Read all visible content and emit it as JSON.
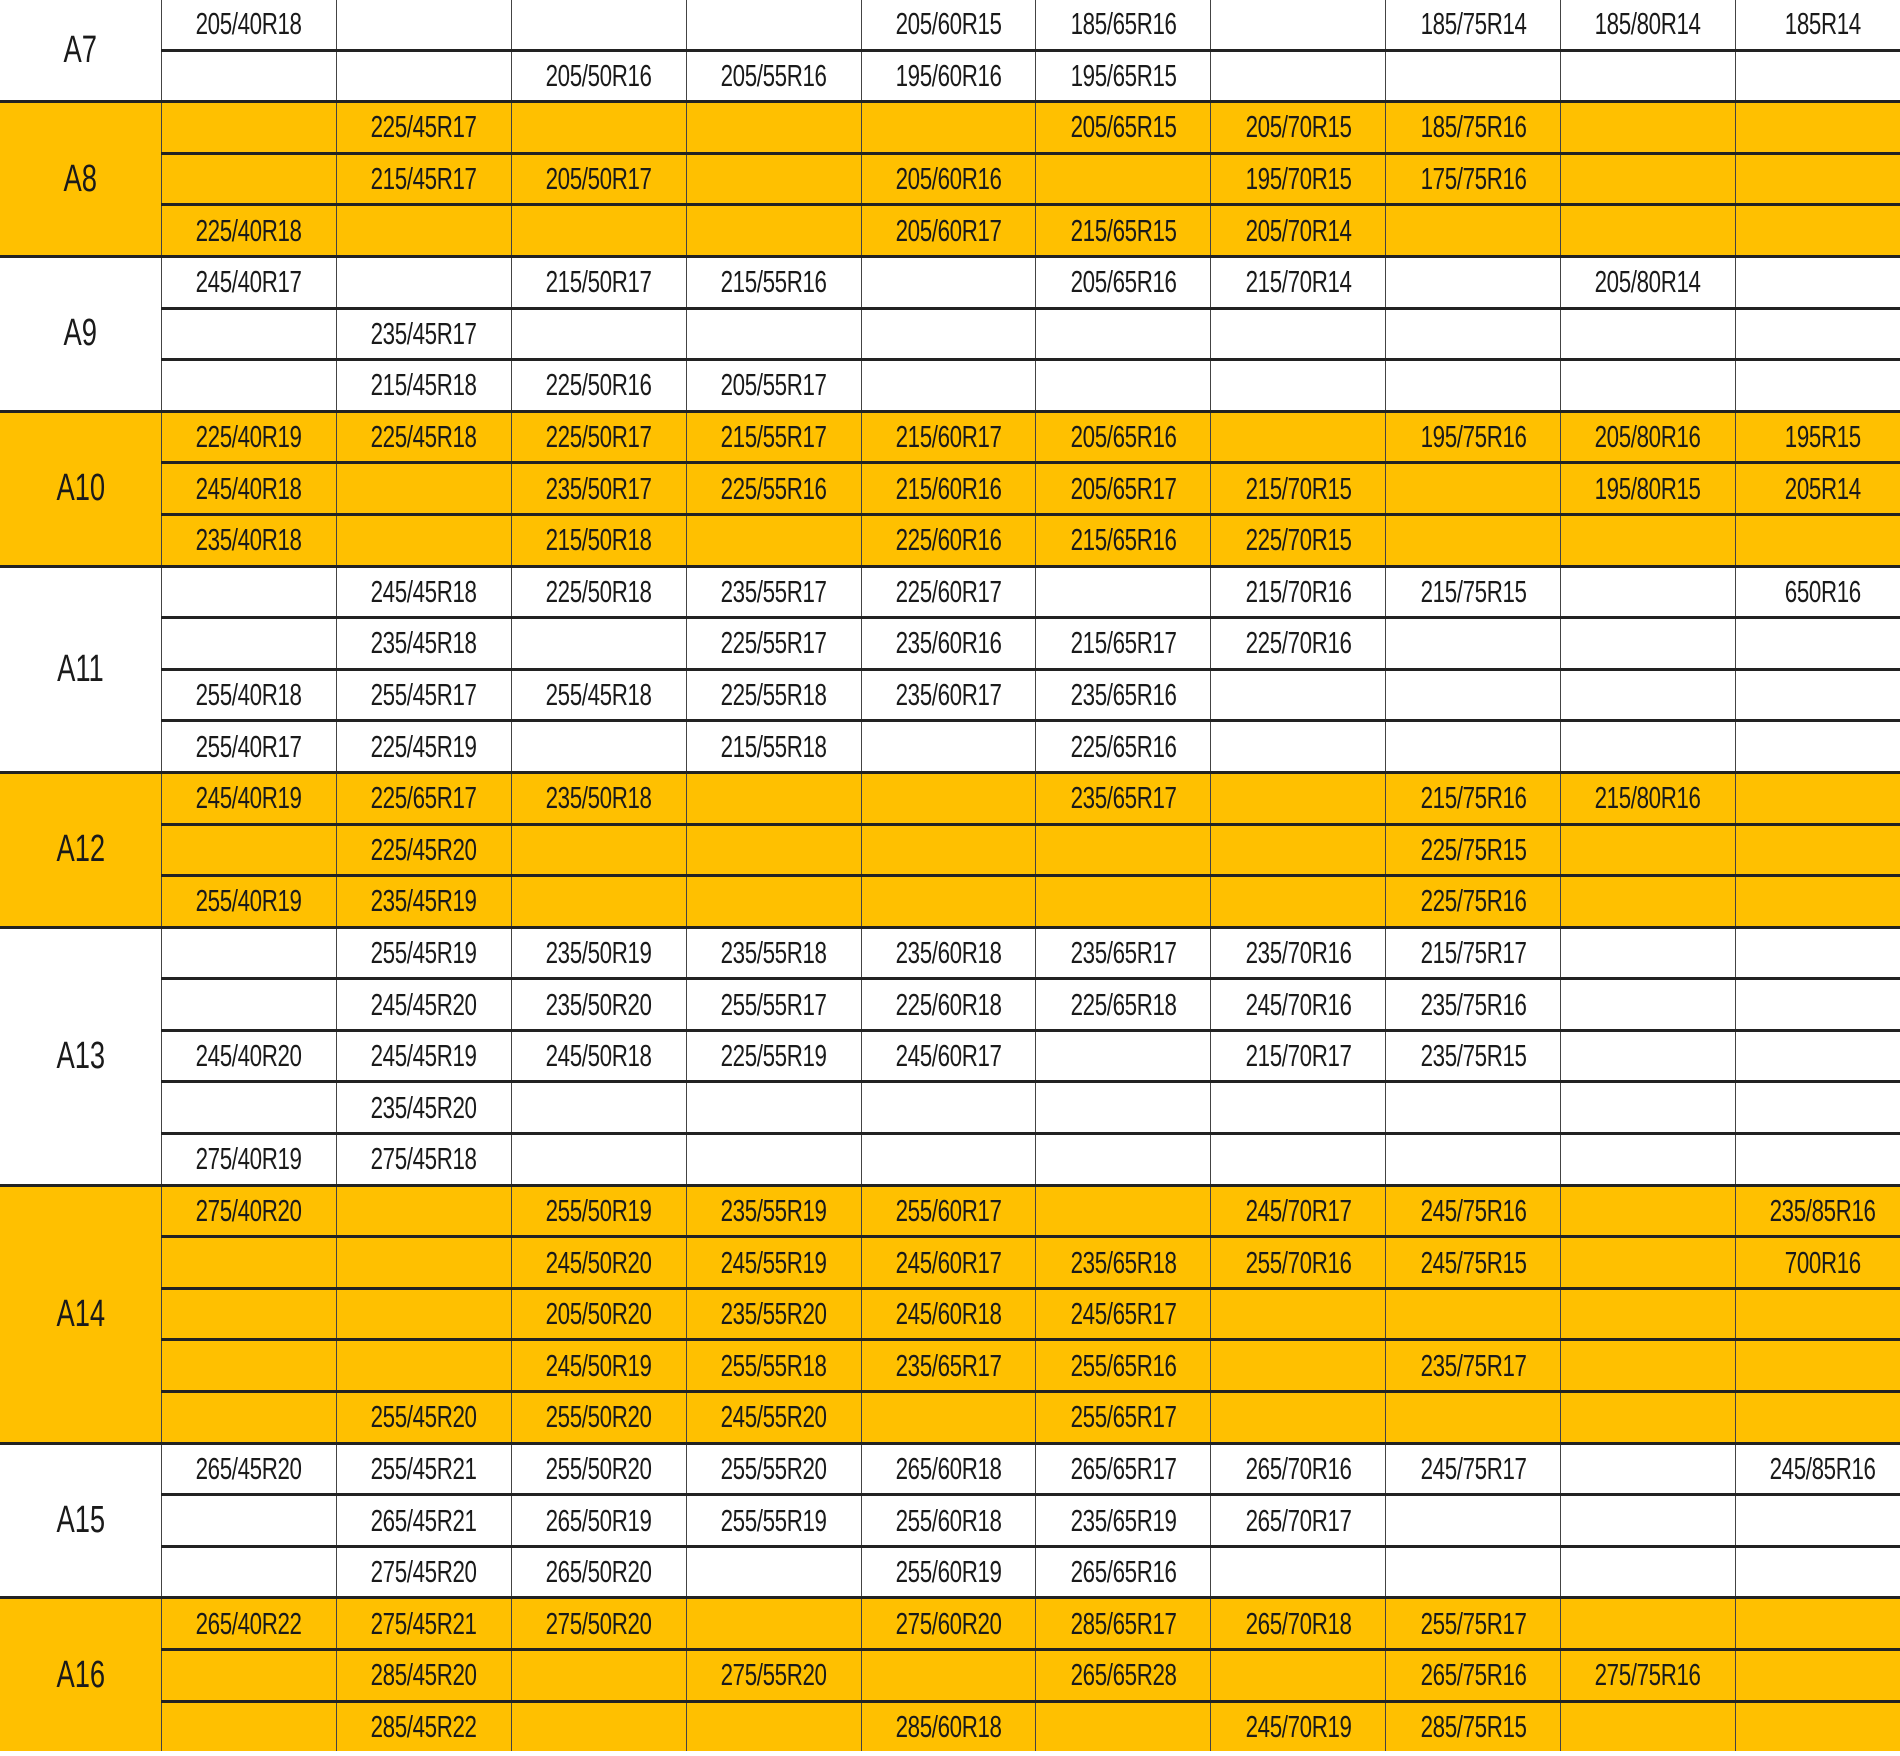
{
  "highlight_color": "#FFC000",
  "groups": [
    {
      "label": "A7",
      "highlighted": false,
      "rows": [
        [
          "205/40R18",
          "",
          "",
          "",
          "205/60R15",
          "185/65R16",
          "",
          "185/75R14",
          "185/80R14",
          "185R14"
        ],
        [
          "",
          "",
          "205/50R16",
          "205/55R16",
          "195/60R16",
          "195/65R15",
          "",
          "",
          "",
          ""
        ]
      ]
    },
    {
      "label": "A8",
      "highlighted": true,
      "rows": [
        [
          "",
          "225/45R17",
          "",
          "",
          "",
          "205/65R15",
          "205/70R15",
          "185/75R16",
          "",
          ""
        ],
        [
          "",
          "215/45R17",
          "205/50R17",
          "",
          "205/60R16",
          "",
          "195/70R15",
          "175/75R16",
          "",
          ""
        ],
        [
          "225/40R18",
          "",
          "",
          "",
          "205/60R17",
          "215/65R15",
          "205/70R14",
          "",
          "",
          ""
        ]
      ]
    },
    {
      "label": "A9",
      "highlighted": false,
      "rows": [
        [
          "245/40R17",
          "",
          "215/50R17",
          "215/55R16",
          "",
          "205/65R16",
          "215/70R14",
          "",
          "205/80R14",
          ""
        ],
        [
          "",
          "235/45R17",
          "",
          "",
          "",
          "",
          "",
          "",
          "",
          ""
        ],
        [
          "",
          "215/45R18",
          "225/50R16",
          "205/55R17",
          "",
          "",
          "",
          "",
          "",
          ""
        ]
      ]
    },
    {
      "label": "A10",
      "highlighted": true,
      "rows": [
        [
          "225/40R19",
          "225/45R18",
          "225/50R17",
          "215/55R17",
          "215/60R17",
          "205/65R16",
          "",
          "195/75R16",
          "205/80R16",
          "195R15"
        ],
        [
          "245/40R18",
          "",
          "235/50R17",
          "225/55R16",
          "215/60R16",
          "205/65R17",
          "215/70R15",
          "",
          "195/80R15",
          "205R14"
        ],
        [
          "235/40R18",
          "",
          "215/50R18",
          "",
          "225/60R16",
          "215/65R16",
          "225/70R15",
          "",
          "",
          ""
        ]
      ]
    },
    {
      "label": "A11",
      "highlighted": false,
      "rows": [
        [
          "",
          "245/45R18",
          "225/50R18",
          "235/55R17",
          "225/60R17",
          "",
          "215/70R16",
          "215/75R15",
          "",
          "650R16"
        ],
        [
          "",
          "235/45R18",
          "",
          "225/55R17",
          "235/60R16",
          "215/65R17",
          "225/70R16",
          "",
          "",
          ""
        ],
        [
          "255/40R18",
          "255/45R17",
          "255/45R18",
          "225/55R18",
          "235/60R17",
          "235/65R16",
          "",
          "",
          "",
          ""
        ],
        [
          "255/40R17",
          "225/45R19",
          "",
          "215/55R18",
          "",
          "225/65R16",
          "",
          "",
          "",
          ""
        ]
      ]
    },
    {
      "label": "A12",
      "highlighted": true,
      "rows": [
        [
          "245/40R19",
          "225/65R17",
          "235/50R18",
          "",
          "",
          "235/65R17",
          "",
          "215/75R16",
          "215/80R16",
          ""
        ],
        [
          "",
          "225/45R20",
          "",
          "",
          "",
          "",
          "",
          "225/75R15",
          "",
          ""
        ],
        [
          "255/40R19",
          "235/45R19",
          "",
          "",
          "",
          "",
          "",
          "225/75R16",
          "",
          ""
        ]
      ]
    },
    {
      "label": "A13",
      "highlighted": false,
      "rows": [
        [
          "",
          "255/45R19",
          "235/50R19",
          "235/55R18",
          "235/60R18",
          "235/65R17",
          "235/70R16",
          "215/75R17",
          "",
          ""
        ],
        [
          "",
          "245/45R20",
          "235/50R20",
          "255/55R17",
          "225/60R18",
          "225/65R18",
          "245/70R16",
          "235/75R16",
          "",
          ""
        ],
        [
          "245/40R20",
          "245/45R19",
          "245/50R18",
          "225/55R19",
          "245/60R17",
          "",
          "215/70R17",
          "235/75R15",
          "",
          ""
        ],
        [
          "",
          "235/45R20",
          "",
          "",
          "",
          "",
          "",
          "",
          "",
          ""
        ],
        [
          "275/40R19",
          "275/45R18",
          "",
          "",
          "",
          "",
          "",
          "",
          "",
          ""
        ]
      ]
    },
    {
      "label": "A14",
      "highlighted": true,
      "rows": [
        [
          "275/40R20",
          "",
          "255/50R19",
          "235/55R19",
          "255/60R17",
          "",
          "245/70R17",
          "245/75R16",
          "",
          "235/85R16"
        ],
        [
          "",
          "",
          "245/50R20",
          "245/55R19",
          "245/60R17",
          "235/65R18",
          "255/70R16",
          "245/75R15",
          "",
          "700R16"
        ],
        [
          "",
          "",
          "205/50R20",
          "235/55R20",
          "245/60R18",
          "245/65R17",
          "",
          "",
          "",
          ""
        ],
        [
          "",
          "",
          "245/50R19",
          "255/55R18",
          "235/65R17",
          "255/65R16",
          "",
          "235/75R17",
          "",
          ""
        ],
        [
          "",
          "255/45R20",
          "255/50R20",
          "245/55R20",
          "",
          "255/65R17",
          "",
          "",
          "",
          ""
        ]
      ]
    },
    {
      "label": "A15",
      "highlighted": false,
      "rows": [
        [
          "265/45R20",
          "255/45R21",
          "255/50R20",
          "255/55R20",
          "265/60R18",
          "265/65R17",
          "265/70R16",
          "245/75R17",
          "",
          "245/85R16"
        ],
        [
          "",
          "265/45R21",
          "265/50R19",
          "255/55R19",
          "255/60R18",
          "235/65R19",
          "265/70R17",
          "",
          "",
          ""
        ],
        [
          "",
          "275/45R20",
          "265/50R20",
          "",
          "255/60R19",
          "265/65R16",
          "",
          "",
          "",
          ""
        ]
      ]
    },
    {
      "label": "A16",
      "highlighted": true,
      "rows": [
        [
          "265/40R22",
          "275/45R21",
          "275/50R20",
          "",
          "275/60R20",
          "285/65R17",
          "265/70R18",
          "255/75R17",
          "",
          ""
        ],
        [
          "",
          "285/45R20",
          "",
          "275/55R20",
          "",
          "265/65R28",
          "",
          "265/75R16",
          "275/75R16",
          ""
        ],
        [
          "",
          "285/45R22",
          "",
          "",
          "285/60R18",
          "",
          "245/70R19",
          "285/75R15",
          "",
          ""
        ]
      ]
    }
  ]
}
